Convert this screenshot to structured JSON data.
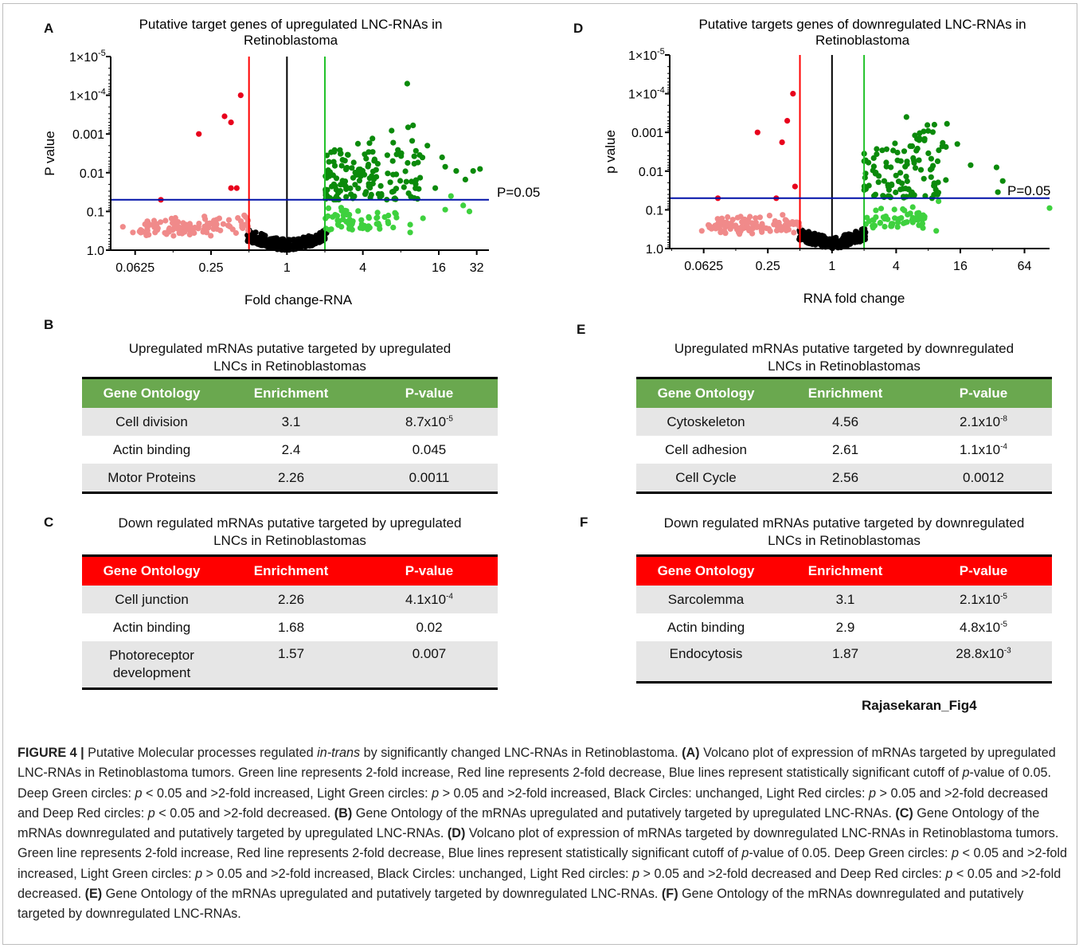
{
  "figure": {
    "signature": "Rajasekaran_Fig4",
    "caption": {
      "label": "FIGURE 4 |",
      "intro_pre": " Putative Molecular processes regulated ",
      "intro_italic": "in-trans",
      "intro_post": " by significantly changed LNC-RNAs in Retinoblastoma. ",
      "A_label": "(A)",
      "A_text_pre": " Volcano plot of expression of mRNAs targeted by upregulated LNC-RNAs in Retinoblastoma tumors. Green line represents 2-fold increase, Red line represents 2-fold decrease, Blue lines represent statistically significant cutoff of ",
      "p_italic": "p",
      "A_text_mid": "-value of 0.05. Deep Green circles: ",
      "A_text_c1": " < 0.05 and >2-fold increased, Light Green circles: ",
      "A_text_c2": " > 0.05 and >2-fold increased, Black Circles: unchanged, Light Red circles: ",
      "A_text_c3": " > 0.05 and >2-fold decreased and Deep Red circles: ",
      "A_text_c4": " < 0.05 and >2-fold decreased. ",
      "B_label": "(B)",
      "B_text": " Gene Ontology of the mRNAs upregulated and putatively targeted by upregulated LNC-RNAs. ",
      "C_label": "(C)",
      "C_text": " Gene Ontology of the mRNAs downregulated and putatively targeted by upregulated LNC-RNAs. ",
      "D_label": "(D)",
      "D_text_pre": " Volcano plot of expression of mRNAs targeted by downregulated LNC-RNAs in Retinoblastoma tumors. Green line represents 2-fold increase, Red line represents 2-fold decrease, Blue lines represent statistically significant cutoff of ",
      "E_label": "(E)",
      "E_text": " Gene Ontology of the mRNAs upregulated and putatively targeted by downregulated LNC-RNAs. ",
      "F_label": "(F)",
      "F_text": " Gene Ontology of the mRNAs downregulated and putatively targeted by downregulated LNC-RNAs."
    }
  },
  "panels": {
    "A": "A",
    "B": "B",
    "C": "C",
    "D": "D",
    "E": "E",
    "F": "F"
  },
  "tables": {
    "B": {
      "title1": "Upregulated mRNAs putative targeted by upregulated",
      "title2": "LNCs in Retinoblastomas",
      "headers": [
        "Gene Ontology",
        "Enrichment",
        "P-value"
      ],
      "rows": [
        {
          "term": "Cell division",
          "enrichment": "3.1",
          "p_base": "8.7x10",
          "p_exp": "-5"
        },
        {
          "term": "Actin binding",
          "enrichment": "2.4",
          "p_base": "0.045",
          "p_exp": ""
        },
        {
          "term": "Motor Proteins",
          "enrichment": "2.26",
          "p_base": "0.0011",
          "p_exp": ""
        }
      ]
    },
    "C": {
      "title1": "Down regulated mRNAs putative targeted by upregulated",
      "title2": "LNCs in Retinoblastomas",
      "headers": [
        "Gene Ontology",
        "Enrichment",
        "P-value"
      ],
      "rows": [
        {
          "term": "Cell junction",
          "enrichment": "2.26",
          "p_base": "4.1x10",
          "p_exp": "-4"
        },
        {
          "term": "Actin binding",
          "enrichment": "1.68",
          "p_base": "0.02",
          "p_exp": ""
        },
        {
          "term": "Photoreceptor",
          "term2": "development",
          "enrichment": "1.57",
          "p_base": "0.007",
          "p_exp": ""
        }
      ]
    },
    "E": {
      "title1": "Upregulated mRNAs putative targeted by downregulated",
      "title2": "LNCs in Retinoblastomas",
      "headers": [
        "Gene Ontology",
        "Enrichment",
        "P-value"
      ],
      "rows": [
        {
          "term": "Cytoskeleton",
          "enrichment": "4.56",
          "p_base": "2.1x10",
          "p_exp": "-8"
        },
        {
          "term": "Cell adhesion",
          "enrichment": "2.61",
          "p_base": "1.1x10",
          "p_exp": "-4"
        },
        {
          "term": "Cell Cycle",
          "enrichment": "2.56",
          "p_base": "0.0012",
          "p_exp": ""
        }
      ]
    },
    "F": {
      "title1": "Down regulated mRNAs putative targeted by downregulated",
      "title2": "LNCs in Retinoblastomas",
      "headers": [
        "Gene Ontology",
        "Enrichment",
        "P-value"
      ],
      "rows": [
        {
          "term": "Sarcolemma",
          "enrichment": "3.1",
          "p_base": "2.1x10",
          "p_exp": "-5"
        },
        {
          "term": "Actin binding",
          "enrichment": "2.9",
          "p_base": "4.8x10",
          "p_exp": "-5"
        },
        {
          "term": "Endocytosis",
          "enrichment": "1.87",
          "p_base": "28.8x10",
          "p_exp": "-3"
        }
      ]
    }
  },
  "colors": {
    "deep_green": "#0b8a0b",
    "light_green": "#3ed13e",
    "black": "#000000",
    "light_red": "#f08a8a",
    "deep_red": "#e8001c",
    "blue_line": "#0010a8",
    "red_line": "#ff0000",
    "green_line": "#22c22a",
    "table_green": "#6aa84f",
    "table_red": "#ff0000"
  },
  "chart_data": [
    {
      "type": "scatter",
      "panel": "A",
      "title": "Putative target genes of upregulated LNC-RNAs in Retinoblastoma",
      "title_line1": "Putative target genes of upregulated LNC-RNAs in",
      "title_line2": "Retinoblastoma",
      "xlabel": "Fold change-RNA",
      "ylabel": "P value",
      "x_scale": "log2",
      "y_scale": "log10-reversed",
      "xlim": [
        0.04,
        40
      ],
      "ylim": [
        1.0,
        1e-05
      ],
      "x_ticks": [
        {
          "v": 0.0625,
          "label": "0.0625"
        },
        {
          "v": 0.25,
          "label": "0.25"
        },
        {
          "v": 1,
          "label": "1"
        },
        {
          "v": 4,
          "label": "4"
        },
        {
          "v": 16,
          "label": "16"
        },
        {
          "v": 32,
          "label": "32"
        }
      ],
      "y_ticks": [
        {
          "v": 1e-05,
          "label": "1×10",
          "exp": "-5"
        },
        {
          "v": 0.0001,
          "label": "1×10",
          "exp": "-4"
        },
        {
          "v": 0.001,
          "label": "0.001"
        },
        {
          "v": 0.01,
          "label": "0.01"
        },
        {
          "v": 0.1,
          "label": "0.1"
        },
        {
          "v": 1,
          "label": "1.0"
        }
      ],
      "vlines": {
        "red": 0.5,
        "black": 1,
        "green": 2
      },
      "hline": {
        "p": 0.05,
        "label": "P=0.05"
      },
      "seed": 7,
      "deep_red": [
        [
          0.1,
          0.05
        ],
        [
          0.36,
          0.025
        ],
        [
          0.4,
          0.025
        ],
        [
          0.2,
          0.001
        ],
        [
          0.32,
          0.00035
        ],
        [
          0.36,
          0.0005
        ],
        [
          0.43,
          0.0001
        ]
      ],
      "deep_green": [
        [
          9.0,
          5e-05
        ],
        [
          10.0,
          0.0006
        ],
        [
          13.0,
          0.002
        ],
        [
          17.0,
          0.004
        ],
        [
          18.0,
          0.007
        ],
        [
          22.0,
          0.009
        ],
        [
          30.0,
          0.009
        ],
        [
          34.0,
          0.008
        ],
        [
          26.0,
          0.015
        ],
        [
          15.0,
          0.025
        ]
      ],
      "light_green": [
        [
          20.0,
          0.04
        ],
        [
          18.0,
          0.09
        ],
        [
          25.0,
          0.07
        ],
        [
          28.0,
          0.1
        ],
        [
          9.5,
          0.22
        ],
        [
          9.5,
          0.35
        ],
        [
          12.0,
          0.15
        ]
      ],
      "light_red_extra": [
        [
          0.05,
          0.25
        ],
        [
          0.06,
          0.35
        ],
        [
          0.08,
          0.4
        ],
        [
          0.09,
          0.35
        ],
        [
          0.12,
          0.3
        ]
      ],
      "clouds": {
        "deep_green_n": 150,
        "light_green_n": 60,
        "black_n": 220,
        "light_red_n": 110
      }
    },
    {
      "type": "scatter",
      "panel": "D",
      "title": "Putative targets genes of downregulated LNC-RNAs in Retinoblastoma",
      "title_line1": "Putative targets genes of downregulated LNC-RNAs in",
      "title_line2": "Retinoblastoma",
      "xlabel": "RNA fold change",
      "ylabel": "p value",
      "x_scale": "log2",
      "y_scale": "log10-reversed",
      "xlim": [
        0.03,
        110
      ],
      "ylim": [
        1.0,
        1e-05
      ],
      "x_ticks": [
        {
          "v": 0.0625,
          "label": "0.0625"
        },
        {
          "v": 0.25,
          "label": "0.25"
        },
        {
          "v": 1,
          "label": "1"
        },
        {
          "v": 4,
          "label": "4"
        },
        {
          "v": 16,
          "label": "16"
        },
        {
          "v": 64,
          "label": "64"
        }
      ],
      "y_ticks": [
        {
          "v": 1e-05,
          "label": "1×10",
          "exp": "-5"
        },
        {
          "v": 0.0001,
          "label": "1×10",
          "exp": "-4"
        },
        {
          "v": 0.001,
          "label": "0.001"
        },
        {
          "v": 0.01,
          "label": "0.01"
        },
        {
          "v": 0.1,
          "label": "0.1"
        },
        {
          "v": 1,
          "label": "1.0"
        }
      ],
      "vlines": {
        "red": 0.5,
        "black": 1,
        "green": 2
      },
      "hline": {
        "p": 0.05,
        "label": "P=0.05"
      },
      "seed": 19,
      "deep_red": [
        [
          0.085,
          0.05
        ],
        [
          0.3,
          0.05
        ],
        [
          0.45,
          0.025
        ],
        [
          0.2,
          0.001
        ],
        [
          0.34,
          0.0018
        ],
        [
          0.38,
          0.0005
        ],
        [
          0.43,
          0.0001
        ]
      ],
      "deep_green": [
        [
          5.0,
          0.0004
        ],
        [
          6.0,
          0.0012
        ],
        [
          12.0,
          0.0006
        ],
        [
          15.0,
          0.002
        ],
        [
          20.0,
          0.007
        ],
        [
          35.0,
          0.008
        ],
        [
          40.0,
          0.018
        ],
        [
          36.0,
          0.035
        ]
      ],
      "light_green": [
        [
          10.0,
          0.06
        ],
        [
          9.5,
          0.35
        ],
        [
          110.0,
          0.09
        ],
        [
          6.5,
          0.12
        ]
      ],
      "light_red_extra": [
        [
          0.06,
          0.35
        ],
        [
          0.07,
          0.25
        ],
        [
          0.09,
          0.22
        ],
        [
          0.1,
          0.4
        ]
      ],
      "clouds": {
        "deep_green_n": 110,
        "light_green_n": 55,
        "black_n": 220,
        "light_red_n": 110
      }
    }
  ]
}
